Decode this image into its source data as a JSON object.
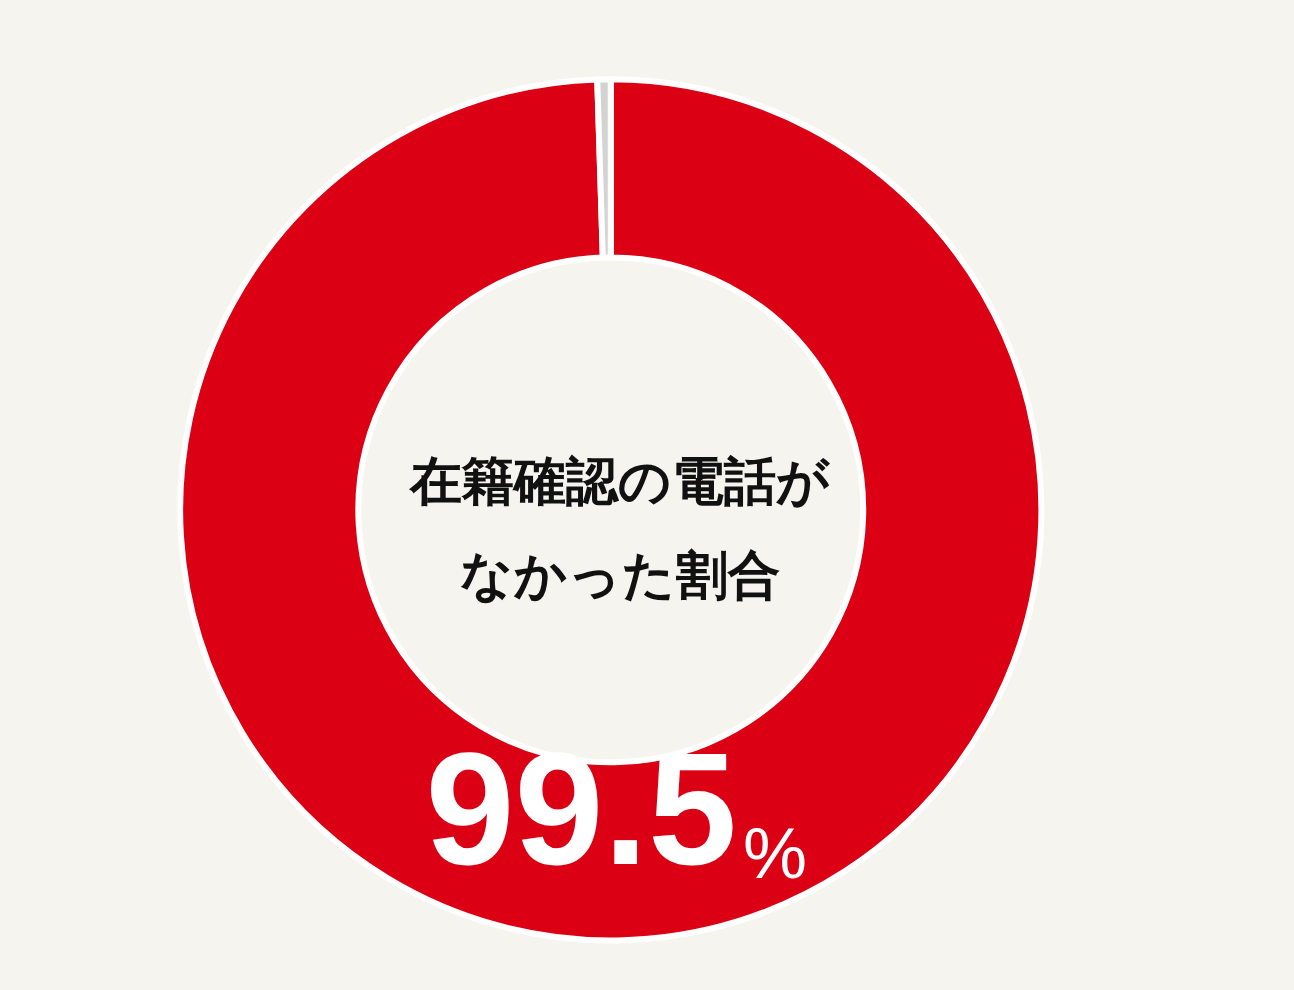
{
  "chart_data": {
    "type": "donut",
    "title": "在籍確認の電話がなかった割合",
    "categories": [
      null,
      null
    ],
    "values": [
      99.5,
      0.5
    ],
    "colors": [
      "#dc0014",
      "#d3d3d3"
    ],
    "value_labels": [
      "99.5%",
      null
    ]
  }
}
